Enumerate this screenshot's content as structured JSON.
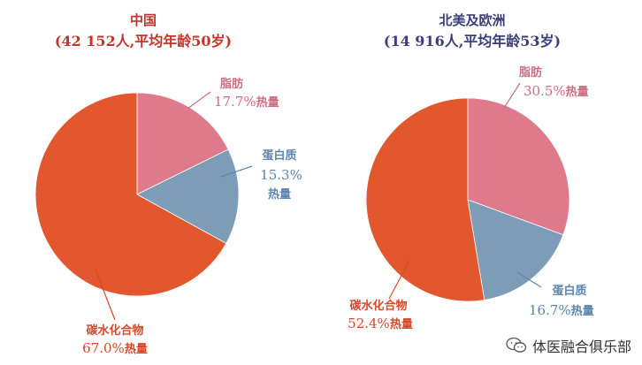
{
  "chart_data": [
    {
      "type": "pie",
      "title": "中国",
      "subtitle": "(42 152人,平均年龄50岁)",
      "slices": [
        {
          "name": "脂肪",
          "value": 17.7,
          "unit": "热量",
          "color": "#DE7A8C"
        },
        {
          "name": "蛋白质",
          "value": 15.3,
          "unit": "热量",
          "color": "#7C9CB8"
        },
        {
          "name": "碳水化合物",
          "value": 67.0,
          "unit": "热量",
          "color": "#E2572D"
        }
      ]
    },
    {
      "type": "pie",
      "title": "北美及欧洲",
      "subtitle": "(14 916人,平均年龄53岁)",
      "slices": [
        {
          "name": "脂肪",
          "value": 30.5,
          "unit": "热量",
          "color": "#DE7A8C"
        },
        {
          "name": "蛋白质",
          "value": 16.7,
          "unit": "热量",
          "color": "#7C9CB8"
        },
        {
          "name": "碳水化合物",
          "value": 52.4,
          "unit": "热量",
          "color": "#E2572D"
        }
      ]
    }
  ],
  "colors": {
    "title_china": "#C2352A",
    "title_na_eu": "#3A3F7A",
    "label_fat": "#D06C80",
    "label_protein": "#5C86AE",
    "label_carb": "#D8472A"
  },
  "watermark": {
    "text": "体医融合俱乐部",
    "icon": "wechat-icon"
  }
}
